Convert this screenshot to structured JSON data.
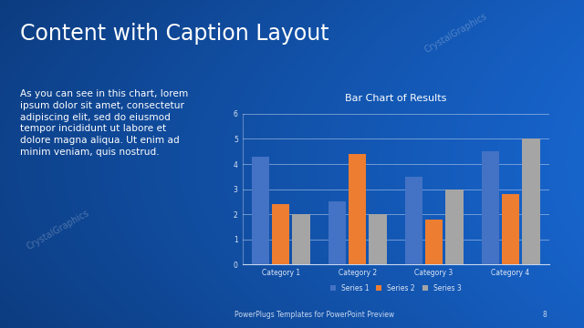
{
  "slide": {
    "title": "Content with Caption Layout",
    "caption": "As you can see in this chart, lorem\nipsum dolor sit amet, consectetur\nadipiscing elit, sed do eiusmod\ntempor incididunt ut labore et\ndolore magna aliqua. Ut enim ad\nminim veniam, quis nostrud.",
    "footer": "PowerPlugs Templates for PowerPoint Preview",
    "page": "8",
    "watermark": "CrystalGraphics"
  },
  "chart_data": {
    "type": "bar",
    "title": "Bar Chart of Results",
    "categories": [
      "Category 1",
      "Category 2",
      "Category 3",
      "Category 4"
    ],
    "series": [
      {
        "name": "Series 1",
        "color": "#4472c4",
        "values": [
          4.3,
          2.5,
          3.5,
          4.5
        ]
      },
      {
        "name": "Series 2",
        "color": "#ed7d31",
        "values": [
          2.4,
          4.4,
          1.8,
          2.8
        ]
      },
      {
        "name": "Series 3",
        "color": "#a5a5a5",
        "values": [
          2.0,
          2.0,
          3.0,
          5.0
        ]
      }
    ],
    "ylim": [
      0,
      6
    ],
    "yticks": [
      0,
      1,
      2,
      3,
      4,
      5,
      6
    ],
    "grid": true,
    "legend": "bottom"
  }
}
